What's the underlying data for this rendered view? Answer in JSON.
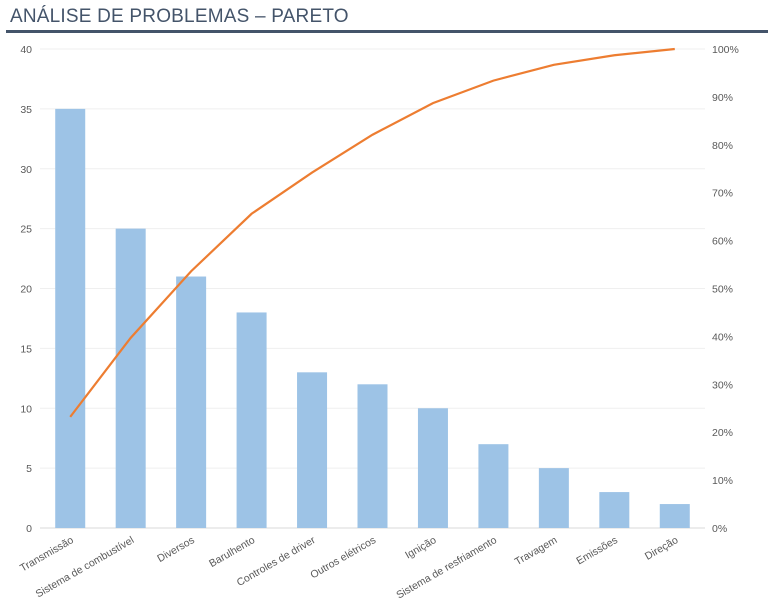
{
  "title": "ANÁLISE DE PROBLEMAS – PARETO",
  "chart_data": {
    "type": "bar",
    "title": "ANÁLISE DE PROBLEMAS – PARETO",
    "categories": [
      "Transmissão",
      "Sistema de combustível",
      "Diversos",
      "Barulhento",
      "Controles de driver",
      "Outros elétricos",
      "Ignição",
      "Sistema de resfriamento",
      "Travagem",
      "Emissões",
      "Direção"
    ],
    "series": [
      {
        "type": "bar",
        "values": [
          35,
          25,
          21,
          18,
          13,
          12,
          10,
          7,
          5,
          3,
          2
        ],
        "color": "#9dc3e6",
        "axis": "left"
      },
      {
        "type": "line",
        "values": [
          23.2,
          39.7,
          53.6,
          65.6,
          74.2,
          82.1,
          88.7,
          93.4,
          96.7,
          98.7,
          100
        ],
        "color": "#ed7d31",
        "axis": "right"
      }
    ],
    "ylim": [
      0,
      40
    ],
    "yticks": [
      "0",
      "5",
      "10",
      "15",
      "20",
      "25",
      "30",
      "35",
      "40"
    ],
    "y2lim": [
      0,
      100
    ],
    "y2ticks": [
      "0%",
      "10%",
      "20%",
      "30%",
      "40%",
      "50%",
      "60%",
      "70%",
      "80%",
      "90%",
      "100%"
    ],
    "grid": true
  }
}
